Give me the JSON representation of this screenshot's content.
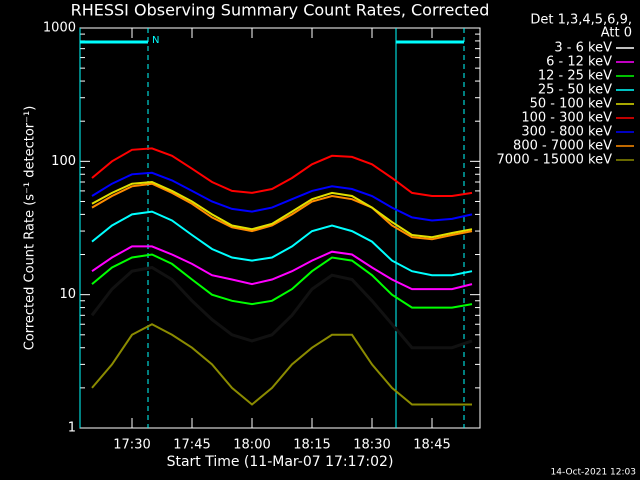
{
  "chart_data": {
    "type": "line",
    "title": "RHESSI Observing Summary Count Rates, Corrected",
    "xlabel": "Start Time (11-Mar-07 17:17:02)",
    "ylabel": "Corrected Count Rate (s⁻¹ detector⁻¹)",
    "legend_header": [
      "Det 1,3,4,5,6,9,",
      "Att 0"
    ],
    "footer": "14-Oct-2021 12:03",
    "log_y": true,
    "xlim": [
      1037,
      1137
    ],
    "xticks": [
      {
        "value": 1050,
        "label": "17:30"
      },
      {
        "value": 1065,
        "label": "17:45"
      },
      {
        "value": 1080,
        "label": "18:00"
      },
      {
        "value": 1095,
        "label": "18:15"
      },
      {
        "value": 1110,
        "label": "18:30"
      },
      {
        "value": 1125,
        "label": "18:45"
      }
    ],
    "ylim": [
      1,
      1000
    ],
    "yticks": [
      1,
      10,
      100,
      1000
    ],
    "intervals": {
      "label": "N",
      "color": "#00ffff",
      "spans": [
        [
          1037,
          1054
        ],
        [
          1116,
          1133
        ]
      ]
    },
    "x": [
      1040,
      1045,
      1050,
      1055,
      1060,
      1065,
      1070,
      1075,
      1080,
      1085,
      1090,
      1095,
      1100,
      1105,
      1110,
      1115,
      1120,
      1125,
      1130,
      1135
    ],
    "series": [
      {
        "name": "3 - 6 keV",
        "color": "#000000",
        "plot_color": "#000000",
        "values": [
          7,
          11,
          15,
          16,
          13,
          9,
          6.5,
          5,
          4.5,
          5,
          7,
          11,
          14,
          13,
          9,
          6,
          4,
          4,
          4,
          4.5
        ]
      },
      {
        "name": "6 - 12 keV",
        "color": "#ff00ff",
        "values": [
          15,
          19,
          23,
          23,
          20,
          17,
          14,
          13,
          12,
          13,
          15,
          18,
          21,
          20,
          16,
          13,
          11,
          11,
          11,
          12
        ]
      },
      {
        "name": "12 - 25 keV",
        "color": "#00ff00",
        "values": [
          12,
          16,
          19,
          20,
          17,
          13,
          10,
          9,
          8.5,
          9,
          11,
          15,
          19,
          18,
          14,
          10,
          8,
          8,
          8,
          8.5
        ]
      },
      {
        "name": "25 - 50 keV",
        "color": "#00ffff",
        "values": [
          25,
          33,
          40,
          42,
          36,
          28,
          22,
          19,
          18,
          19,
          23,
          30,
          33,
          30,
          25,
          18,
          15,
          14,
          14,
          15
        ]
      },
      {
        "name": "50 - 100 keV",
        "color": "#e0e000",
        "values": [
          48,
          58,
          68,
          70,
          60,
          50,
          40,
          33,
          31,
          34,
          42,
          52,
          58,
          55,
          45,
          35,
          28,
          27,
          29,
          31
        ]
      },
      {
        "name": "100 - 300 keV",
        "color": "#ff0000",
        "values": [
          75,
          100,
          122,
          125,
          110,
          88,
          70,
          60,
          58,
          62,
          75,
          95,
          110,
          108,
          95,
          75,
          58,
          55,
          55,
          58
        ]
      },
      {
        "name": "300 - 800 keV",
        "color": "#0000ff",
        "values": [
          55,
          68,
          80,
          82,
          72,
          60,
          50,
          44,
          42,
          45,
          52,
          60,
          65,
          62,
          55,
          45,
          38,
          36,
          37,
          40
        ]
      },
      {
        "name": "800 - 7000 keV",
        "color": "#ff8c00",
        "values": [
          45,
          55,
          65,
          68,
          58,
          48,
          38,
          32,
          30,
          33,
          40,
          50,
          55,
          52,
          45,
          33,
          27,
          26,
          28,
          30
        ]
      },
      {
        "name": "7000 - 15000 keV",
        "color": "#8b8b00",
        "values": [
          2,
          3,
          5,
          6,
          5,
          4,
          3,
          2,
          1.5,
          2,
          3,
          4,
          5,
          5,
          3,
          2,
          1.5,
          1.5,
          1.5,
          1.5
        ]
      }
    ]
  }
}
